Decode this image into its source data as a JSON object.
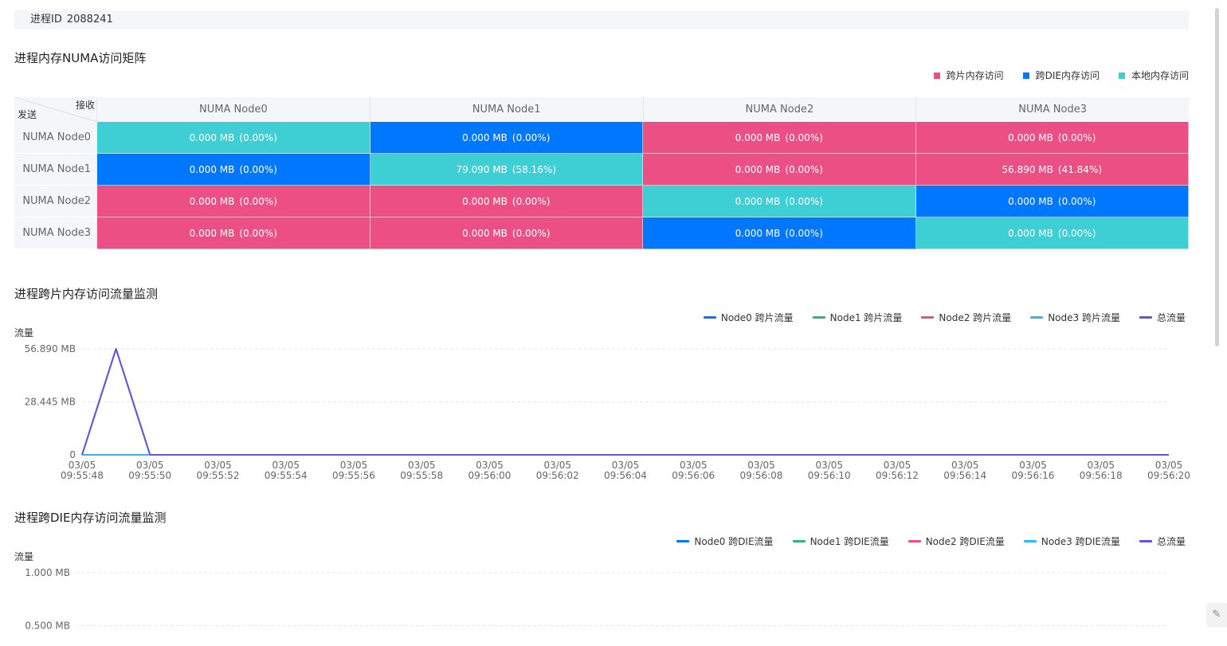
{
  "process": {
    "label": "进程ID",
    "id": "2088241"
  },
  "matrix_section": {
    "title": "进程内存NUMA访问矩阵",
    "legend": [
      {
        "label": "跨片内存访问",
        "color": "#ec4f84"
      },
      {
        "label": "跨DIE内存访问",
        "color": "#0077ff"
      },
      {
        "label": "本地内存访问",
        "color": "#3ecfd5"
      }
    ],
    "corner_recv": "接收",
    "corner_send": "发送",
    "columns": [
      "NUMA Node0",
      "NUMA Node1",
      "NUMA Node2",
      "NUMA Node3"
    ],
    "rows": [
      {
        "label": "NUMA Node0",
        "cells": [
          {
            "value": "0.000 MB",
            "pct": "(0.00%)",
            "type": "local"
          },
          {
            "value": "0.000 MB",
            "pct": "(0.00%)",
            "type": "die"
          },
          {
            "value": "0.000 MB",
            "pct": "(0.00%)",
            "type": "chip"
          },
          {
            "value": "0.000 MB",
            "pct": "(0.00%)",
            "type": "chip"
          }
        ]
      },
      {
        "label": "NUMA Node1",
        "cells": [
          {
            "value": "0.000 MB",
            "pct": "(0.00%)",
            "type": "die"
          },
          {
            "value": "79.090 MB",
            "pct": "(58.16%)",
            "type": "local"
          },
          {
            "value": "0.000 MB",
            "pct": "(0.00%)",
            "type": "chip"
          },
          {
            "value": "56.890 MB",
            "pct": "(41.84%)",
            "type": "chip"
          }
        ]
      },
      {
        "label": "NUMA Node2",
        "cells": [
          {
            "value": "0.000 MB",
            "pct": "(0.00%)",
            "type": "chip"
          },
          {
            "value": "0.000 MB",
            "pct": "(0.00%)",
            "type": "chip"
          },
          {
            "value": "0.000 MB",
            "pct": "(0.00%)",
            "type": "local"
          },
          {
            "value": "0.000 MB",
            "pct": "(0.00%)",
            "type": "die"
          }
        ]
      },
      {
        "label": "NUMA Node3",
        "cells": [
          {
            "value": "0.000 MB",
            "pct": "(0.00%)",
            "type": "chip"
          },
          {
            "value": "0.000 MB",
            "pct": "(0.00%)",
            "type": "chip"
          },
          {
            "value": "0.000 MB",
            "pct": "(0.00%)",
            "type": "die"
          },
          {
            "value": "0.000 MB",
            "pct": "(0.00%)",
            "type": "local"
          }
        ]
      }
    ],
    "type_colors": {
      "chip": "#ec4f84",
      "die": "#0077ff",
      "local": "#3ecfd5"
    }
  },
  "chart_data": [
    {
      "type": "line",
      "title": "进程跨片内存访问流量监测",
      "ylabel": "流量",
      "ylim": [
        0,
        56.89
      ],
      "yticks": [
        "0",
        "28.445 MB",
        "56.890 MB"
      ],
      "x": [
        "03/05 09:55:48",
        "03/05 09:55:49",
        "03/05 09:55:50",
        "03/05 09:55:51",
        "03/05 09:55:52",
        "03/05 09:55:53",
        "03/05 09:55:54",
        "03/05 09:55:55",
        "03/05 09:55:56",
        "03/05 09:55:57",
        "03/05 09:55:58",
        "03/05 09:55:59",
        "03/05 09:56:00",
        "03/05 09:56:01",
        "03/05 09:56:02",
        "03/05 09:56:03",
        "03/05 09:56:04",
        "03/05 09:56:05",
        "03/05 09:56:06",
        "03/05 09:56:07",
        "03/05 09:56:08",
        "03/05 09:56:09",
        "03/05 09:56:10",
        "03/05 09:56:11",
        "03/05 09:56:12",
        "03/05 09:56:13",
        "03/05 09:56:14",
        "03/05 09:56:15",
        "03/05 09:56:16",
        "03/05 09:56:17",
        "03/05 09:56:18",
        "03/05 09:56:19",
        "03/05 09:56:20"
      ],
      "xtick_dates": [
        "03/05",
        "03/05",
        "03/05",
        "03/05",
        "03/05",
        "03/05",
        "03/05",
        "03/05",
        "03/05",
        "03/05",
        "03/05",
        "03/05",
        "03/05",
        "03/05",
        "03/05",
        "03/05",
        "03/05"
      ],
      "xtick_times": [
        "09:55:48",
        "09:55:50",
        "09:55:52",
        "09:55:54",
        "09:55:56",
        "09:55:58",
        "09:56:00",
        "09:56:02",
        "09:56:04",
        "09:56:06",
        "09:56:08",
        "09:56:10",
        "09:56:12",
        "09:56:14",
        "09:56:16",
        "09:56:18",
        "09:56:20"
      ],
      "series": [
        {
          "name": "Node0 跨片流量",
          "color": "#0077ff",
          "values": [
            0,
            0,
            0,
            0,
            0,
            0,
            0,
            0,
            0,
            0,
            0,
            0,
            0,
            0,
            0,
            0,
            0,
            0,
            0,
            0,
            0,
            0,
            0,
            0,
            0,
            0,
            0,
            0,
            0,
            0,
            0,
            0,
            0
          ]
        },
        {
          "name": "Node1 跨片流量",
          "color": "#2fb47a",
          "values": [
            0,
            56.89,
            0,
            0,
            0,
            0,
            0,
            0,
            0,
            0,
            0,
            0,
            0,
            0,
            0,
            0,
            0,
            0,
            0,
            0,
            0,
            0,
            0,
            0,
            0,
            0,
            0,
            0,
            0,
            0,
            0,
            0,
            0
          ]
        },
        {
          "name": "Node2 跨片流量",
          "color": "#ec4f84",
          "values": [
            0,
            0,
            0,
            0,
            0,
            0,
            0,
            0,
            0,
            0,
            0,
            0,
            0,
            0,
            0,
            0,
            0,
            0,
            0,
            0,
            0,
            0,
            0,
            0,
            0,
            0,
            0,
            0,
            0,
            0,
            0,
            0,
            0
          ]
        },
        {
          "name": "Node3 跨片流量",
          "color": "#33b8f4",
          "values": [
            0,
            0,
            0,
            0,
            0,
            0,
            0,
            0,
            0,
            0,
            0,
            0,
            0,
            0,
            0,
            0,
            0,
            0,
            0,
            0,
            0,
            0,
            0,
            0,
            0,
            0,
            0,
            0,
            0,
            0,
            0,
            0,
            0
          ]
        },
        {
          "name": "总流量",
          "color": "#6651e0",
          "values": [
            0,
            56.89,
            0,
            0,
            0,
            0,
            0,
            0,
            0,
            0,
            0,
            0,
            0,
            0,
            0,
            0,
            0,
            0,
            0,
            0,
            0,
            0,
            0,
            0,
            0,
            0,
            0,
            0,
            0,
            0,
            0,
            0,
            0
          ]
        }
      ]
    },
    {
      "type": "line",
      "title": "进程跨DIE内存访问流量监测",
      "ylabel": "流量",
      "ylim": [
        0,
        1.0
      ],
      "yticks": [
        "1.000 MB",
        "0.500 MB"
      ],
      "series": [
        {
          "name": "Node0 跨DIE流量",
          "color": "#0077ff"
        },
        {
          "name": "Node1 跨DIE流量",
          "color": "#2fb47a"
        },
        {
          "name": "Node2 跨DIE流量",
          "color": "#ec4f84"
        },
        {
          "name": "Node3 跨DIE流量",
          "color": "#33b8f4"
        },
        {
          "name": "总流量",
          "color": "#6651e0"
        }
      ]
    }
  ]
}
